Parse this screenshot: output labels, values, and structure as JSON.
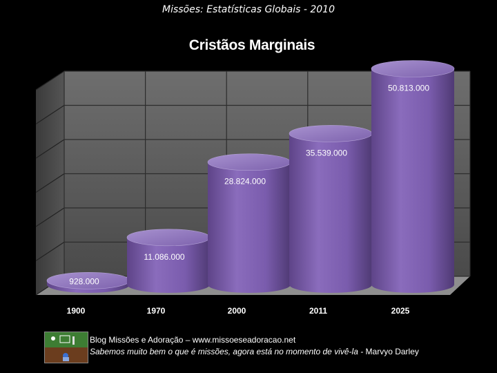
{
  "header": {
    "subtitle": "Missões: Estatísticas Globais - 2010"
  },
  "chart_data": {
    "type": "bar",
    "title": "Cristãos Marginais",
    "categories": [
      "1900",
      "1970",
      "2000",
      "2011",
      "2025"
    ],
    "values": [
      928000,
      11086000,
      28824000,
      35539000,
      50813000
    ],
    "data_labels": [
      "928.000",
      "11.086.000",
      "28.824.000",
      "35.539.000",
      "50.813.000"
    ],
    "xlabel": "",
    "ylabel": "",
    "ylim": [
      0,
      60000000
    ],
    "grid": true,
    "legend": "none",
    "colors": {
      "bar": "#7a5aa8",
      "bar_top": "#9b82c4",
      "wall": "#5a5a5a",
      "grid": "#2a2a2a"
    }
  },
  "footer": {
    "line1": "Blog Missões e Adoração – www.missoeseadoracao.net",
    "line2_italic": "Sabemos muito bem o que é missões, agora está no momento de vivê-la -",
    "line2_author": "Marvyo Darley"
  }
}
